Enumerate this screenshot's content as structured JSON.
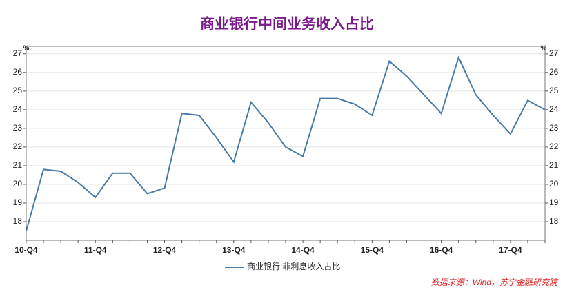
{
  "chart_data": {
    "type": "line",
    "title": "商业银行中间业务收入占比",
    "y_unit": "%",
    "categories": [
      "10-Q4",
      null,
      null,
      null,
      "11-Q4",
      null,
      null,
      null,
      "12-Q4",
      null,
      null,
      null,
      "13-Q4",
      null,
      null,
      null,
      "14-Q4",
      null,
      null,
      null,
      "15-Q4",
      null,
      null,
      null,
      "16-Q4",
      null,
      null,
      null,
      "17-Q4",
      null,
      null
    ],
    "series": [
      {
        "name": "商业银行:非利息收入占比",
        "color": "#4a7aa6",
        "values": [
          17.5,
          20.8,
          20.7,
          20.1,
          19.3,
          20.6,
          20.6,
          19.5,
          19.8,
          23.8,
          23.7,
          22.5,
          21.2,
          24.4,
          23.3,
          22.0,
          21.5,
          24.6,
          24.6,
          24.3,
          23.7,
          26.6,
          25.8,
          24.8,
          23.8,
          26.8,
          24.8,
          23.7,
          22.7,
          24.5,
          24.0
        ]
      }
    ],
    "ylim": [
      17,
      27.4
    ],
    "yticks": [
      18,
      19,
      20,
      21,
      22,
      23,
      24,
      25,
      26,
      27
    ],
    "grid": true,
    "legend": "bottom",
    "source": "数据来源：Wind，苏宁金融研究院"
  }
}
